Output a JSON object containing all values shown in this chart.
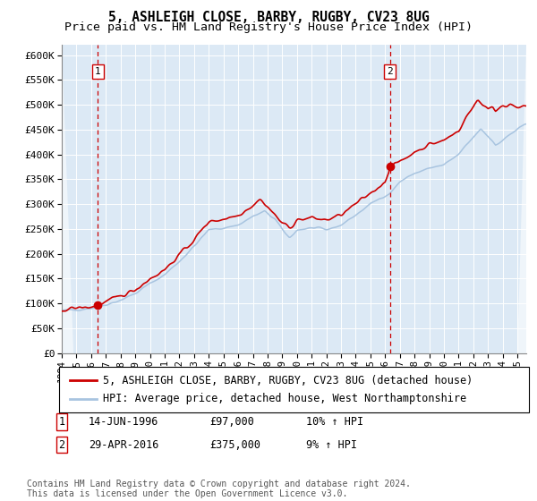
{
  "title": "5, ASHLEIGH CLOSE, BARBY, RUGBY, CV23 8UG",
  "subtitle": "Price paid vs. HM Land Registry's House Price Index (HPI)",
  "ylim": [
    0,
    620000
  ],
  "yticks": [
    0,
    50000,
    100000,
    150000,
    200000,
    250000,
    300000,
    350000,
    400000,
    450000,
    500000,
    550000,
    600000
  ],
  "ytick_labels": [
    "£0",
    "£50K",
    "£100K",
    "£150K",
    "£200K",
    "£250K",
    "£300K",
    "£350K",
    "£400K",
    "£450K",
    "£500K",
    "£550K",
    "£600K"
  ],
  "hpi_color": "#a8c4e0",
  "price_color": "#cc0000",
  "marker_color": "#cc0000",
  "vline_color": "#cc0000",
  "background_color": "#dce9f5",
  "legend_label_price": "5, ASHLEIGH CLOSE, BARBY, RUGBY, CV23 8UG (detached house)",
  "legend_label_hpi": "HPI: Average price, detached house, West Northamptonshire",
  "sale1_date": 1996.45,
  "sale1_price": 97000,
  "sale1_label": "1",
  "sale2_date": 2016.33,
  "sale2_price": 375000,
  "sale2_label": "2",
  "annotation1_date": "14-JUN-1996",
  "annotation1_price": "£97,000",
  "annotation1_hpi": "10% ↑ HPI",
  "annotation2_date": "29-APR-2016",
  "annotation2_price": "£375,000",
  "annotation2_hpi": "9% ↑ HPI",
  "footer": "Contains HM Land Registry data © Crown copyright and database right 2024.\nThis data is licensed under the Open Government Licence v3.0.",
  "title_fontsize": 10.5,
  "subtitle_fontsize": 9.5,
  "tick_fontsize": 8,
  "legend_fontsize": 8.5,
  "annotation_fontsize": 8.5,
  "footer_fontsize": 7
}
